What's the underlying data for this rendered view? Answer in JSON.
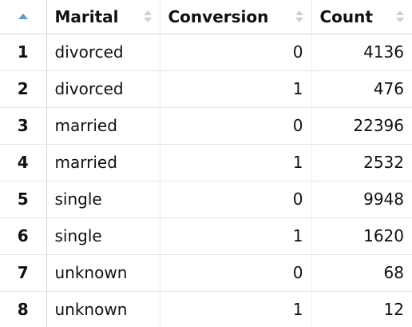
{
  "table": {
    "columns": [
      "Marital",
      "Conversion",
      "Count"
    ],
    "rows": [
      {
        "index": "1",
        "marital": "divorced",
        "conversion": "0",
        "count": "4136"
      },
      {
        "index": "2",
        "marital": "divorced",
        "conversion": "1",
        "count": "476"
      },
      {
        "index": "3",
        "marital": "married",
        "conversion": "0",
        "count": "22396"
      },
      {
        "index": "4",
        "marital": "married",
        "conversion": "1",
        "count": "2532"
      },
      {
        "index": "5",
        "marital": "single",
        "conversion": "0",
        "count": "9948"
      },
      {
        "index": "6",
        "marital": "single",
        "conversion": "1",
        "count": "1620"
      },
      {
        "index": "7",
        "marital": "unknown",
        "conversion": "0",
        "count": "68"
      },
      {
        "index": "8",
        "marital": "unknown",
        "conversion": "1",
        "count": "12"
      }
    ]
  },
  "colors": {
    "active_sort": "#5b9bd5",
    "inactive_sort": "#d0d0d0",
    "grid": "#e5e5e5"
  },
  "icons": {
    "index_sort": "sort-ascending-icon",
    "column_sort": "sort-icon"
  }
}
